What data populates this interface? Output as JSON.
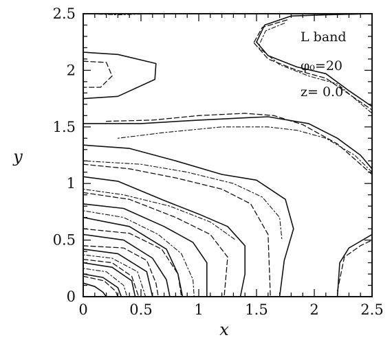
{
  "chart_data": {
    "type": "contour",
    "title": "",
    "xlabel": "x",
    "ylabel": "y",
    "xlim": [
      0,
      2.5
    ],
    "ylim": [
      0,
      2.5
    ],
    "xticks": [
      0,
      0.5,
      1,
      1.5,
      2,
      2.5
    ],
    "xtick_labels": [
      "0",
      "0.5",
      "1",
      "1.5",
      "2",
      "2.5"
    ],
    "yticks": [
      0,
      0.5,
      1,
      1.5,
      2,
      2.5
    ],
    "ytick_labels": [
      "0",
      "0.5",
      "1",
      "1.5",
      "2",
      "2.5"
    ],
    "annotations": [
      "L band",
      "φ₀=20",
      "z=  0.0"
    ],
    "series": [
      {
        "style": "solid",
        "contours": [
          [
            [
              0,
              2.16
            ],
            [
              0.3,
              2.14
            ],
            [
              0.63,
              2.06
            ],
            [
              0.62,
              1.92
            ],
            [
              0.3,
              1.77
            ],
            [
              0,
              1.75
            ]
          ],
          [
            [
              1.5,
              2.25
            ],
            [
              1.57,
              2.4
            ],
            [
              1.8,
              2.48
            ],
            [
              2.1,
              2.49
            ],
            [
              2.5,
              2.5
            ]
          ],
          [
            [
              1.5,
              2.25
            ],
            [
              1.6,
              2.13
            ],
            [
              1.85,
              2.03
            ],
            [
              2.1,
              1.97
            ],
            [
              2.3,
              1.82
            ],
            [
              2.5,
              1.68
            ]
          ],
          [
            [
              0,
              1.53
            ],
            [
              0.5,
              1.53
            ],
            [
              1,
              1.56
            ],
            [
              1.4,
              1.58
            ],
            [
              1.6,
              1.59
            ],
            [
              1.95,
              1.53
            ],
            [
              2.2,
              1.4
            ],
            [
              2.4,
              1.25
            ],
            [
              2.5,
              1.13
            ]
          ],
          [
            [
              0,
              1.34
            ],
            [
              0.4,
              1.31
            ],
            [
              0.8,
              1.2
            ],
            [
              1.2,
              1.08
            ],
            [
              1.5,
              1.03
            ],
            [
              1.75,
              0.86
            ],
            [
              1.82,
              0.6
            ],
            [
              1.74,
              0.32
            ],
            [
              1.7,
              0
            ]
          ],
          [
            [
              0,
              1.06
            ],
            [
              0.3,
              1.02
            ],
            [
              0.7,
              0.85
            ],
            [
              1.0,
              0.73
            ],
            [
              1.25,
              0.62
            ],
            [
              1.4,
              0.45
            ],
            [
              1.4,
              0.2
            ],
            [
              1.36,
              0
            ]
          ],
          [
            [
              0,
              0.82
            ],
            [
              0.35,
              0.78
            ],
            [
              0.7,
              0.62
            ],
            [
              0.95,
              0.48
            ],
            [
              1.07,
              0.3
            ],
            [
              1.07,
              0
            ]
          ],
          [
            [
              0,
              0.7
            ],
            [
              0.4,
              0.62
            ],
            [
              0.72,
              0.42
            ],
            [
              0.82,
              0.2
            ],
            [
              0.86,
              0
            ]
          ],
          [
            [
              0,
              0.55
            ],
            [
              0.35,
              0.5
            ],
            [
              0.6,
              0.34
            ],
            [
              0.72,
              0.15
            ],
            [
              0.75,
              0
            ]
          ],
          [
            [
              0,
              0.42
            ],
            [
              0.3,
              0.38
            ],
            [
              0.55,
              0.22
            ],
            [
              0.6,
              0
            ]
          ],
          [
            [
              0,
              0.3
            ],
            [
              0.25,
              0.26
            ],
            [
              0.42,
              0.14
            ],
            [
              0.45,
              0
            ]
          ],
          [
            [
              0,
              0.2
            ],
            [
              0.17,
              0.17
            ],
            [
              0.3,
              0.08
            ],
            [
              0.33,
              0
            ]
          ],
          [
            [
              0,
              0.12
            ],
            [
              0.1,
              0.09
            ],
            [
              0.17,
              0.04
            ],
            [
              0.2,
              0
            ]
          ],
          [
            [
              2.2,
              0
            ],
            [
              2.22,
              0.3
            ],
            [
              2.3,
              0.43
            ],
            [
              2.5,
              0.55
            ]
          ]
        ]
      },
      {
        "style": "dashed",
        "contours": [
          [
            [
              0,
              2.08
            ],
            [
              0.2,
              2.07
            ],
            [
              0.25,
              1.95
            ],
            [
              0.15,
              1.85
            ],
            [
              0,
              1.85
            ]
          ],
          [
            [
              1.48,
              2.25
            ],
            [
              1.55,
              2.38
            ],
            [
              1.78,
              2.45
            ]
          ],
          [
            [
              1.48,
              2.24
            ],
            [
              1.6,
              2.1
            ],
            [
              1.85,
              2.0
            ],
            [
              2.1,
              1.93
            ],
            [
              2.5,
              1.65
            ]
          ],
          [
            [
              0.2,
              1.55
            ],
            [
              0.6,
              1.56
            ],
            [
              1.0,
              1.6
            ],
            [
              1.4,
              1.62
            ],
            [
              1.65,
              1.6
            ],
            [
              1.9,
              1.52
            ],
            [
              2.2,
              1.35
            ],
            [
              2.5,
              1.08
            ]
          ],
          [
            [
              0,
              1.17
            ],
            [
              0.4,
              1.13
            ],
            [
              0.8,
              1.05
            ],
            [
              1.2,
              0.95
            ],
            [
              1.45,
              0.82
            ],
            [
              1.6,
              0.55
            ],
            [
              1.62,
              0
            ]
          ],
          [
            [
              0,
              0.92
            ],
            [
              0.4,
              0.86
            ],
            [
              0.8,
              0.7
            ],
            [
              1.1,
              0.55
            ],
            [
              1.25,
              0.35
            ],
            [
              1.22,
              0
            ]
          ],
          [
            [
              0,
              0.6
            ],
            [
              0.4,
              0.56
            ],
            [
              0.68,
              0.42
            ],
            [
              0.82,
              0.2
            ],
            [
              0.85,
              0
            ]
          ],
          [
            [
              0,
              0.45
            ],
            [
              0.35,
              0.43
            ],
            [
              0.55,
              0.32
            ],
            [
              0.63,
              0.12
            ],
            [
              0.65,
              0
            ]
          ],
          [
            [
              0,
              0.33
            ],
            [
              0.25,
              0.3
            ],
            [
              0.42,
              0.18
            ],
            [
              0.48,
              0
            ]
          ],
          [
            [
              0,
              0.18
            ],
            [
              0.18,
              0.14
            ],
            [
              0.28,
              0.05
            ],
            [
              0.3,
              0
            ]
          ],
          [
            [
              2.2,
              0.05
            ],
            [
              2.26,
              0.35
            ],
            [
              2.4,
              0.45
            ],
            [
              2.5,
              0.5
            ]
          ]
        ]
      },
      {
        "style": "dot-dash",
        "contours": [
          [
            [
              0.02,
              2.5
            ],
            [
              0.3,
              2.49
            ],
            [
              0.6,
              2.5
            ]
          ],
          [
            [
              1.52,
              2.22
            ],
            [
              1.58,
              2.35
            ],
            [
              1.75,
              2.42
            ]
          ],
          [
            [
              1.52,
              2.2
            ],
            [
              1.7,
              2.05
            ],
            [
              1.95,
              1.95
            ],
            [
              2.2,
              1.88
            ],
            [
              2.5,
              1.62
            ]
          ],
          [
            [
              0.3,
              1.4
            ],
            [
              0.7,
              1.45
            ],
            [
              1.2,
              1.5
            ],
            [
              1.6,
              1.5
            ],
            [
              1.85,
              1.47
            ],
            [
              2.1,
              1.4
            ],
            [
              2.35,
              1.25
            ],
            [
              2.5,
              1.1
            ]
          ],
          [
            [
              0,
              1.2
            ],
            [
              0.5,
              1.17
            ],
            [
              0.9,
              1.1
            ],
            [
              1.3,
              1.0
            ],
            [
              1.55,
              0.88
            ],
            [
              1.7,
              0.7
            ],
            [
              1.72,
              0.5
            ]
          ],
          [
            [
              0,
              0.95
            ],
            [
              0.35,
              0.9
            ],
            [
              0.75,
              0.8
            ],
            [
              1.1,
              0.66
            ],
            [
              1.32,
              0.5
            ]
          ],
          [
            [
              0,
              0.76
            ],
            [
              0.35,
              0.7
            ],
            [
              0.65,
              0.55
            ],
            [
              0.85,
              0.38
            ],
            [
              0.95,
              0.15
            ],
            [
              0.96,
              0
            ]
          ],
          [
            [
              0,
              0.37
            ],
            [
              0.25,
              0.34
            ],
            [
              0.47,
              0.22
            ],
            [
              0.54,
              0
            ]
          ],
          [
            [
              0,
              0.25
            ],
            [
              0.2,
              0.22
            ],
            [
              0.35,
              0.1
            ],
            [
              0.38,
              0
            ]
          ]
        ]
      }
    ]
  }
}
